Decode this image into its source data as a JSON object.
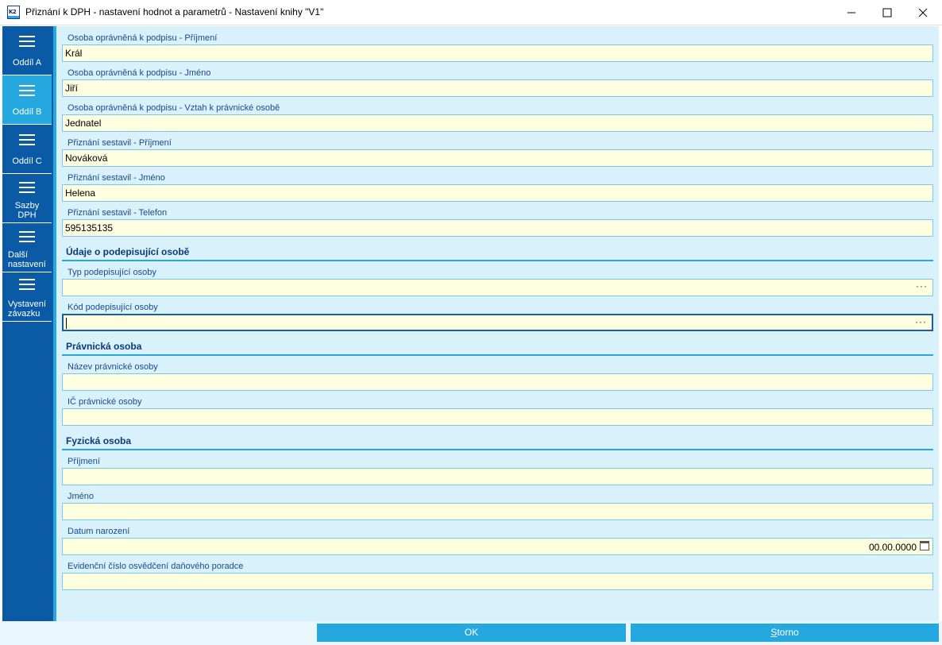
{
  "window": {
    "title": "Přiznání k DPH - nastavení hodnot a parametrů - Nastavení knihy \"V1\"",
    "app_icon_text": "K2"
  },
  "sidebar": {
    "items": [
      {
        "label": "Oddíl A",
        "active": false
      },
      {
        "label": "Oddíl B",
        "active": true
      },
      {
        "label": "Oddíl C",
        "active": false
      },
      {
        "label": "Sazby DPH",
        "active": false
      },
      {
        "label": "Další nastavení",
        "active": false
      },
      {
        "label": "Vystavení závazku",
        "active": false
      }
    ]
  },
  "form": {
    "fields": [
      {
        "label": "Osoba oprávněná k podpisu - Příjmení",
        "value": "Král"
      },
      {
        "label": "Osoba oprávněná k podpisu - Jméno",
        "value": "Jiří"
      },
      {
        "label": "Osoba oprávněná k podpisu - Vztah k právnické osobě",
        "value": "Jednatel"
      },
      {
        "label": "Přiznání sestavil - Příjmení",
        "value": "Nováková"
      },
      {
        "label": "Přiznání sestavil - Jméno",
        "value": "Helena"
      },
      {
        "label": "Přiznání sestavil - Telefon",
        "value": "595135135"
      }
    ],
    "signer_section": {
      "title": "Údaje o podepisující osobě",
      "type_label": "Typ podepisující osoby",
      "type_value": "",
      "code_label": "Kód podepisující osoby",
      "code_value": "",
      "ellipsis": "···"
    },
    "legal_section": {
      "title": "Právnická osoba",
      "name_label": "Název právnické osoby",
      "name_value": "",
      "ic_label": "IČ právnické osoby",
      "ic_value": ""
    },
    "natural_section": {
      "title": "Fyzická osoba",
      "surname_label": "Příjmení",
      "surname_value": "",
      "name_label": "Jméno",
      "name_value": "",
      "birth_label": "Datum narození",
      "birth_value": "00.00.0000",
      "cert_label": "Evidenční číslo osvědčení daňového poradce",
      "cert_value": ""
    }
  },
  "buttons": {
    "ok_label": "OK",
    "cancel_label_first": "S",
    "cancel_label_rest": "torno"
  },
  "colors": {
    "sidebar": "#0b5aa6",
    "accent": "#24a8df",
    "panel": "#d8f1fb",
    "input": "#fdfde0"
  }
}
